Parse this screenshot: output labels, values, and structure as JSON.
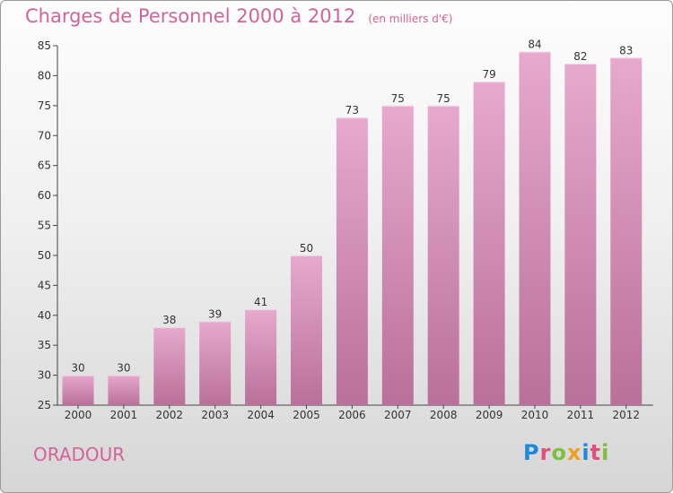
{
  "title": "Charges de Personnel 2000 à 2012",
  "subtitle": "(en milliers d'€)",
  "commune": "ORADOUR",
  "brand": "Proxiti",
  "brand_colors": [
    "#1f8ad6",
    "#e0507a",
    "#7cbf3f",
    "#f0a020",
    "#1f8ad6",
    "#e0507a",
    "#7cbf3f"
  ],
  "colors": {
    "bar": "#d28cb7",
    "title": "#d2639b"
  },
  "chart_data": {
    "type": "bar",
    "title": "Charges de Personnel 2000 à 2012",
    "subtitle": "(en milliers d'€)",
    "categories": [
      "2000",
      "2001",
      "2002",
      "2003",
      "2004",
      "2005",
      "2006",
      "2007",
      "2008",
      "2009",
      "2010",
      "2011",
      "2012"
    ],
    "values": [
      30,
      30,
      38,
      39,
      41,
      50,
      73,
      75,
      75,
      79,
      84,
      82,
      83
    ],
    "ylim": [
      25,
      85
    ],
    "yticks": [
      25,
      30,
      35,
      40,
      45,
      50,
      55,
      60,
      65,
      70,
      75,
      80,
      85
    ],
    "grid": false,
    "legend": "none"
  }
}
